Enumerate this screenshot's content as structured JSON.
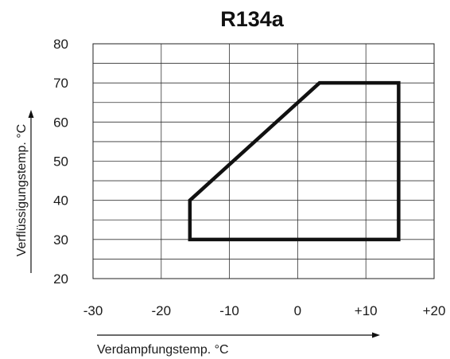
{
  "chart_data": {
    "type": "line",
    "title": "R134a",
    "xlabel": "Verdampfungstemp. °C",
    "ylabel": "Verflüssigungstemp. °C",
    "xlim": [
      -30,
      20
    ],
    "ylim": [
      20,
      80
    ],
    "x_ticks": [
      -30,
      -20,
      -10,
      0,
      10,
      20
    ],
    "x_tick_labels": [
      "-30",
      "-20",
      "-10",
      "0",
      "+10",
      "+20"
    ],
    "y_ticks": [
      20,
      30,
      40,
      50,
      60,
      70,
      80
    ],
    "y_tick_labels": [
      "20",
      "30",
      "40",
      "50",
      "60",
      "70",
      "80"
    ],
    "grid": true,
    "series": [
      {
        "closed": true,
        "color": "#111111",
        "x": [
          -15.8,
          -15.8,
          3.2,
          14.8,
          14.8
        ],
        "y": [
          30,
          40,
          70,
          70,
          30
        ]
      }
    ]
  }
}
